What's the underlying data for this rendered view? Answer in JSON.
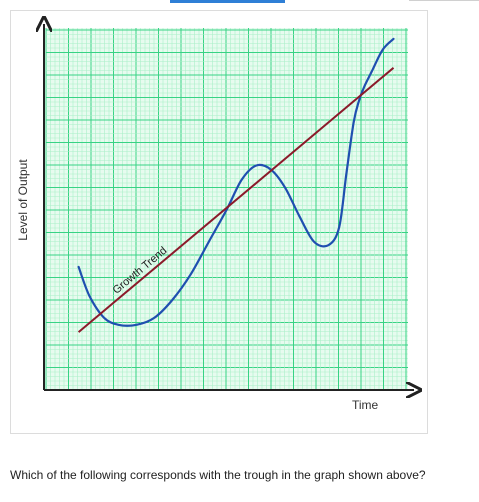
{
  "question": "Which of the following corresponds with the trough in the graph shown above?",
  "colors": {
    "grid_minor": "#a9f0c8",
    "grid_major": "#37d384",
    "grid_background": "#e7fbef",
    "axis": "#222222",
    "business_cycle": "#1f4fb0",
    "growth_trend": "#8b1a2a"
  },
  "chart_data": {
    "type": "line",
    "title": "",
    "xlabel": "Time",
    "ylabel": "Level of Output",
    "xlim": [
      0,
      100
    ],
    "ylim": [
      0,
      100
    ],
    "grid": true,
    "series": [
      {
        "name": "Growth Trend",
        "role": "trend-line-with-label",
        "x": [
          9,
          96
        ],
        "y": [
          16,
          89
        ]
      },
      {
        "name": "",
        "role": "business-cycle-curve",
        "x": [
          9,
          12,
          16,
          20,
          25,
          30,
          35,
          40,
          45,
          50,
          54,
          58,
          62,
          66,
          70,
          74,
          78,
          81,
          83,
          85,
          86.5,
          88,
          90,
          93,
          96
        ],
        "y": [
          34,
          26,
          20,
          18,
          18,
          20,
          25,
          32,
          41,
          50,
          58,
          62,
          61,
          56,
          48,
          41,
          40,
          45,
          60,
          74,
          80,
          84,
          88,
          94,
          97
        ]
      }
    ]
  }
}
